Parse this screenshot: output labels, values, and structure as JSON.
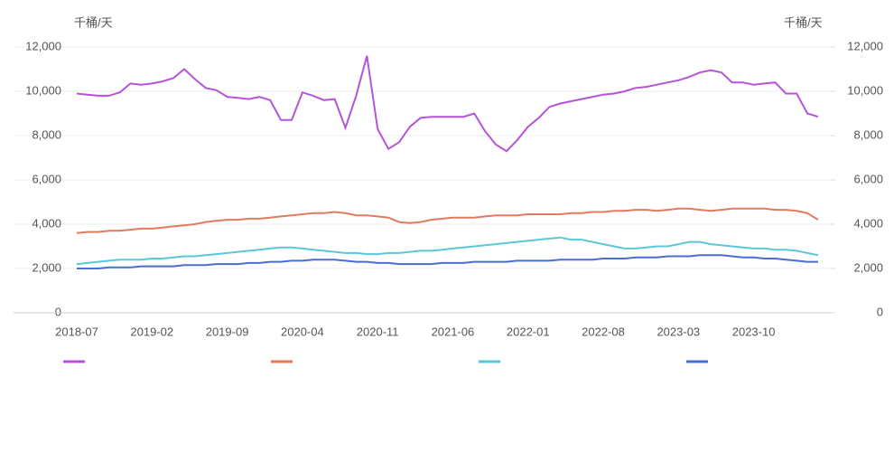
{
  "chart_data": {
    "type": "line",
    "ylabel": "千桶/天",
    "y2label": "千桶/天",
    "categories": [
      "2018-07",
      null,
      null,
      null,
      null,
      null,
      null,
      "2019-02",
      null,
      null,
      null,
      null,
      null,
      null,
      "2019-09",
      null,
      null,
      null,
      null,
      null,
      null,
      "2020-04",
      null,
      null,
      null,
      null,
      null,
      null,
      "2020-11",
      null,
      null,
      null,
      null,
      null,
      null,
      "2021-06",
      null,
      null,
      null,
      null,
      null,
      null,
      "2022-01",
      null,
      null,
      null,
      null,
      null,
      null,
      "2022-08",
      null,
      null,
      null,
      null,
      null,
      null,
      "2023-03",
      null,
      null,
      null,
      null,
      null,
      null,
      "2023-10",
      null,
      null,
      null,
      null,
      null,
      null
    ],
    "ylim": [
      0,
      12000
    ],
    "yticks": [
      0,
      {
        "value": 2000,
        "label": "2,000"
      },
      {
        "value": 4000,
        "label": "4,000"
      },
      {
        "value": 6000,
        "label": "6,000"
      },
      {
        "value": 8000,
        "label": "8,000"
      },
      {
        "value": 10000,
        "label": "10,000"
      },
      {
        "value": 12000,
        "label": "12,000"
      }
    ],
    "y2lim": [
      0,
      12000
    ],
    "y2ticks": [
      0,
      {
        "value": 2000,
        "label": "2,000"
      },
      {
        "value": 4000,
        "label": "4,000"
      },
      {
        "value": 6000,
        "label": "6,000"
      },
      {
        "value": 8000,
        "label": "8,000"
      },
      {
        "value": 10000,
        "label": "10,000"
      },
      {
        "value": 12000,
        "label": "12,000"
      }
    ],
    "grid": true,
    "series": [
      {
        "color": "#b455d9",
        "values": [
          9900,
          9850,
          9800,
          9800,
          9950,
          10350,
          10300,
          10350,
          10450,
          10600,
          11000,
          10550,
          10150,
          10050,
          9750,
          9700,
          9650,
          9750,
          9600,
          8700,
          8700,
          9950,
          9800,
          9600,
          9650,
          8350,
          9800,
          11600,
          8300,
          7400,
          7700,
          8400,
          8800,
          8850,
          8850,
          8850,
          8850,
          9000,
          8200,
          7600,
          7300,
          7800,
          8400,
          8800,
          9300,
          9450,
          9550,
          9650,
          9750,
          9850,
          9900,
          10000,
          10150,
          10200,
          10300,
          10400,
          10500,
          10650,
          10850,
          10950,
          10850,
          10400,
          10400,
          10300,
          10350,
          10400,
          9900,
          9900,
          9000,
          8850
        ]
      },
      {
        "color": "#e07b5f",
        "values": [
          3600,
          3650,
          3650,
          3700,
          3700,
          3750,
          3800,
          3800,
          3850,
          3900,
          3950,
          4000,
          4100,
          4150,
          4200,
          4200,
          4250,
          4250,
          4300,
          4350,
          4400,
          4450,
          4500,
          4500,
          4550,
          4500,
          4400,
          4400,
          4350,
          4300,
          4100,
          4050,
          4100,
          4200,
          4250,
          4300,
          4300,
          4300,
          4350,
          4400,
          4400,
          4400,
          4450,
          4450,
          4450,
          4450,
          4500,
          4500,
          4550,
          4550,
          4600,
          4600,
          4650,
          4650,
          4600,
          4650,
          4700,
          4700,
          4650,
          4600,
          4650,
          4700,
          4700,
          4700,
          4700,
          4650,
          4650,
          4600,
          4500,
          4200
        ]
      },
      {
        "color": "#5bc8d8",
        "values": [
          2200,
          2250,
          2300,
          2350,
          2400,
          2400,
          2400,
          2450,
          2450,
          2500,
          2550,
          2550,
          2600,
          2650,
          2700,
          2750,
          2800,
          2850,
          2900,
          2950,
          2950,
          2900,
          2850,
          2800,
          2750,
          2700,
          2700,
          2650,
          2650,
          2700,
          2700,
          2750,
          2800,
          2800,
          2850,
          2900,
          2950,
          3000,
          3050,
          3100,
          3150,
          3200,
          3250,
          3300,
          3350,
          3400,
          3300,
          3300,
          3200,
          3100,
          3000,
          2900,
          2900,
          2950,
          3000,
          3000,
          3100,
          3200,
          3200,
          3100,
          3050,
          3000,
          2950,
          2900,
          2900,
          2850,
          2850,
          2800,
          2700,
          2600
        ]
      },
      {
        "color": "#4a6fd1",
        "values": [
          2000,
          2000,
          2000,
          2050,
          2050,
          2050,
          2100,
          2100,
          2100,
          2100,
          2150,
          2150,
          2150,
          2200,
          2200,
          2200,
          2250,
          2250,
          2300,
          2300,
          2350,
          2350,
          2400,
          2400,
          2400,
          2350,
          2300,
          2300,
          2250,
          2250,
          2200,
          2200,
          2200,
          2200,
          2250,
          2250,
          2250,
          2300,
          2300,
          2300,
          2300,
          2350,
          2350,
          2350,
          2350,
          2400,
          2400,
          2400,
          2400,
          2450,
          2450,
          2450,
          2500,
          2500,
          2500,
          2550,
          2550,
          2550,
          2600,
          2600,
          2600,
          2550,
          2500,
          2500,
          2450,
          2450,
          2400,
          2350,
          2300,
          2300
        ]
      }
    ]
  }
}
